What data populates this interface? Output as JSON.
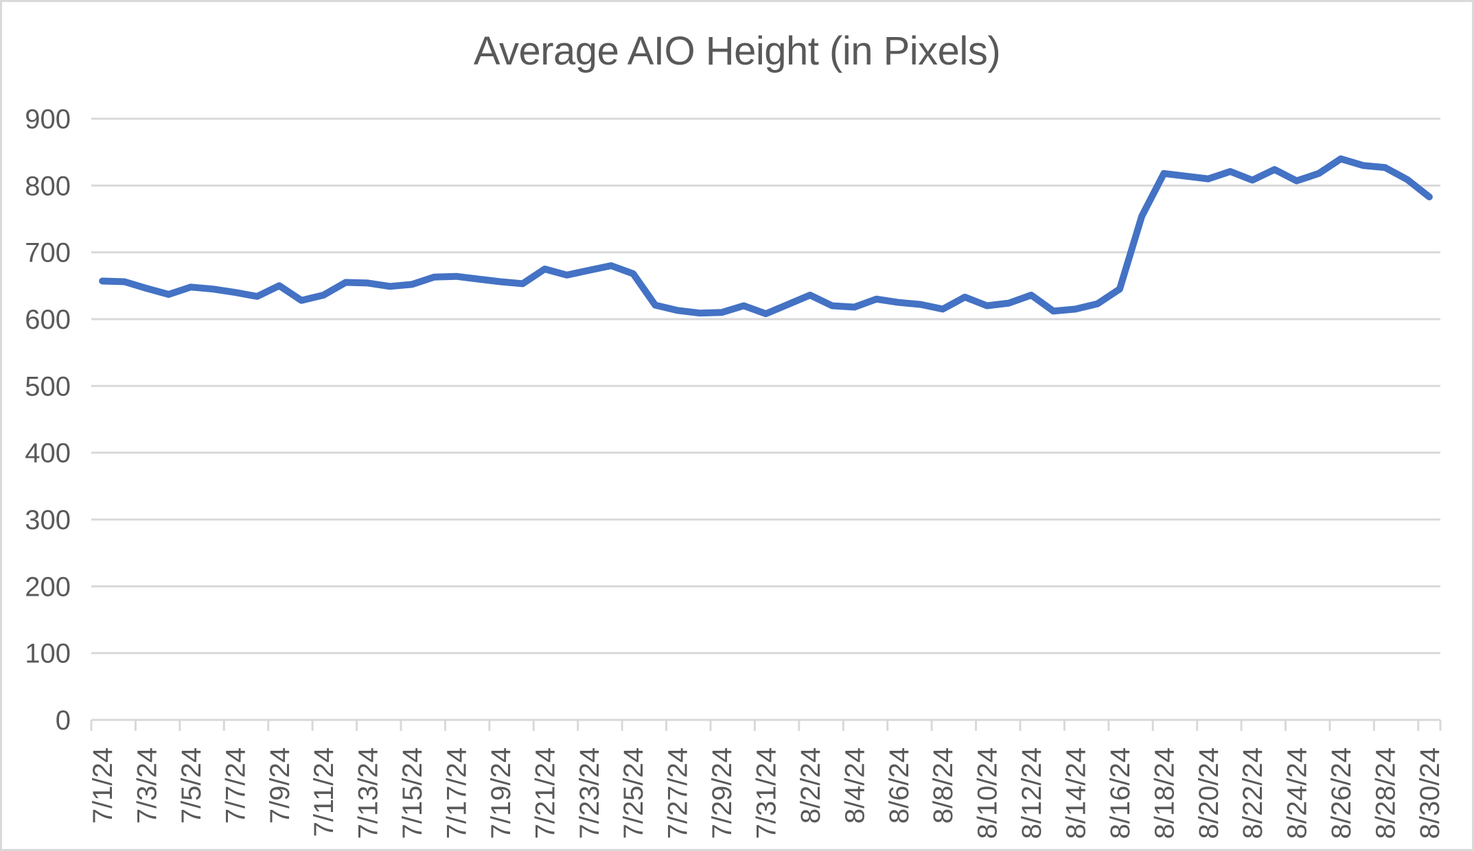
{
  "chart_data": {
    "type": "line",
    "title": "Average AIO Height (in Pixels)",
    "xlabel": "",
    "ylabel": "",
    "ylim": [
      0,
      900
    ],
    "y_ticks": [
      0,
      100,
      200,
      300,
      400,
      500,
      600,
      700,
      800,
      900
    ],
    "grid": true,
    "legend": "none",
    "label_every": 2,
    "colors": {
      "series": "#4472c4",
      "gridline": "#d9d9d9",
      "axis_line": "#d9d9d9",
      "tick_text": "#595959",
      "title_text": "#595959",
      "frame_border": "#d9d9d9",
      "background": "#ffffff"
    },
    "categories": [
      "7/1/24",
      "7/2/24",
      "7/3/24",
      "7/4/24",
      "7/5/24",
      "7/6/24",
      "7/7/24",
      "7/8/24",
      "7/9/24",
      "7/10/24",
      "7/11/24",
      "7/12/24",
      "7/13/24",
      "7/14/24",
      "7/15/24",
      "7/16/24",
      "7/17/24",
      "7/18/24",
      "7/19/24",
      "7/20/24",
      "7/21/24",
      "7/22/24",
      "7/23/24",
      "7/24/24",
      "7/25/24",
      "7/26/24",
      "7/27/24",
      "7/28/24",
      "7/29/24",
      "7/30/24",
      "7/31/24",
      "8/1/24",
      "8/2/24",
      "8/3/24",
      "8/4/24",
      "8/5/24",
      "8/6/24",
      "8/7/24",
      "8/8/24",
      "8/9/24",
      "8/10/24",
      "8/11/24",
      "8/12/24",
      "8/13/24",
      "8/14/24",
      "8/15/24",
      "8/16/24",
      "8/17/24",
      "8/18/24",
      "8/19/24",
      "8/20/24",
      "8/21/24",
      "8/22/24",
      "8/23/24",
      "8/24/24",
      "8/25/24",
      "8/26/24",
      "8/27/24",
      "8/28/24",
      "8/29/24",
      "8/30/24"
    ],
    "values": [
      657,
      656,
      646,
      637,
      648,
      645,
      640,
      634,
      650,
      628,
      636,
      655,
      654,
      649,
      652,
      663,
      664,
      660,
      656,
      653,
      675,
      666,
      673,
      680,
      668,
      621,
      613,
      609,
      610,
      620,
      608,
      622,
      636,
      620,
      618,
      630,
      625,
      622,
      615,
      633,
      620,
      624,
      636,
      612,
      615,
      623,
      645,
      754,
      818,
      814,
      810,
      821,
      808,
      824,
      807,
      818,
      840,
      830,
      827,
      809,
      783
    ]
  }
}
